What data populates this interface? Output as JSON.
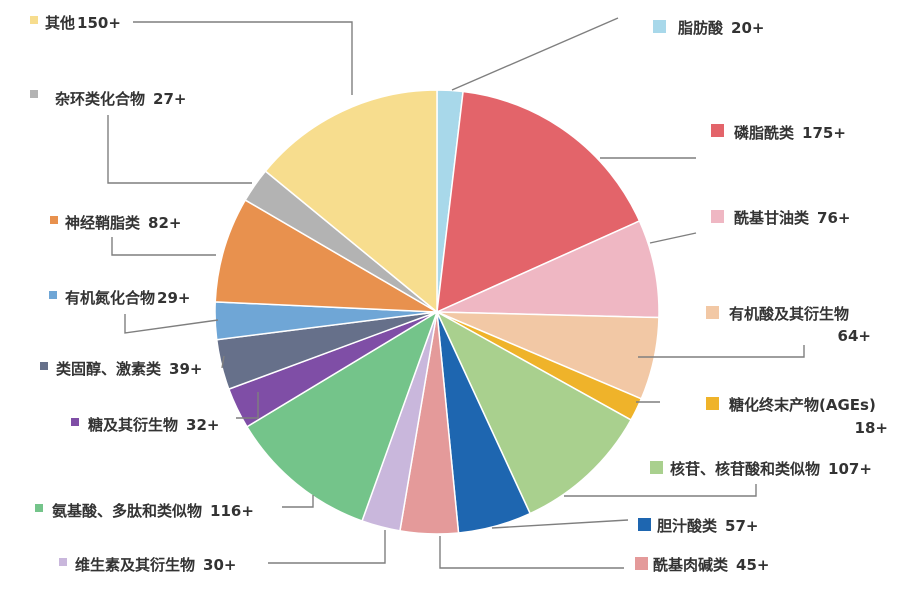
{
  "chart_data": {
    "type": "pie",
    "title": "",
    "legend_placement": "around-pie-with-leader-lines",
    "slices": [
      {
        "label": "脂肪酸",
        "display": "20+",
        "value": 20,
        "color": "#a8d8ea"
      },
      {
        "label": "磷脂酰类",
        "display": "175+",
        "value": 175,
        "color": "#e3646a"
      },
      {
        "label": "酰基甘油类",
        "display": "76+",
        "value": 76,
        "color": "#efb7c3"
      },
      {
        "label": "有机酸及其衍生物",
        "display": "64+",
        "value": 64,
        "color": "#f2c8a5"
      },
      {
        "label": "糖化终末产物(AGEs)",
        "display": "18+",
        "value": 18,
        "color": "#efb32a"
      },
      {
        "label": "核苷、核苷酸和类似物",
        "display": "107+",
        "value": 107,
        "color": "#a9d08e"
      },
      {
        "label": "胆汁酸类",
        "display": "57+",
        "value": 57,
        "color": "#1e66b0"
      },
      {
        "label": "酰基肉碱类",
        "display": "45+",
        "value": 45,
        "color": "#e49a9a"
      },
      {
        "label": "维生素及其衍生物",
        "display": "30+",
        "value": 30,
        "color": "#c9b7dc"
      },
      {
        "label": "氨基酸、多肽和类似物",
        "display": "116+",
        "value": 116,
        "color": "#74c48a"
      },
      {
        "label": "糖及其衍生物",
        "display": "32+",
        "value": 32,
        "color": "#7f4ea6"
      },
      {
        "label": "类固醇、激素类",
        "display": "39+",
        "value": 39,
        "color": "#66708a"
      },
      {
        "label": "有机氮化合物",
        "display": "29+",
        "value": 29,
        "color": "#6fa6d6"
      },
      {
        "label": "神经鞘脂类",
        "display": "82+",
        "value": 82,
        "color": "#e8914e"
      },
      {
        "label": "杂环类化合物",
        "display": "27+",
        "value": 27,
        "color": "#b3b3b3"
      },
      {
        "label": "其他",
        "display": "150+",
        "value": 150,
        "color": "#f7dd8e"
      }
    ]
  }
}
